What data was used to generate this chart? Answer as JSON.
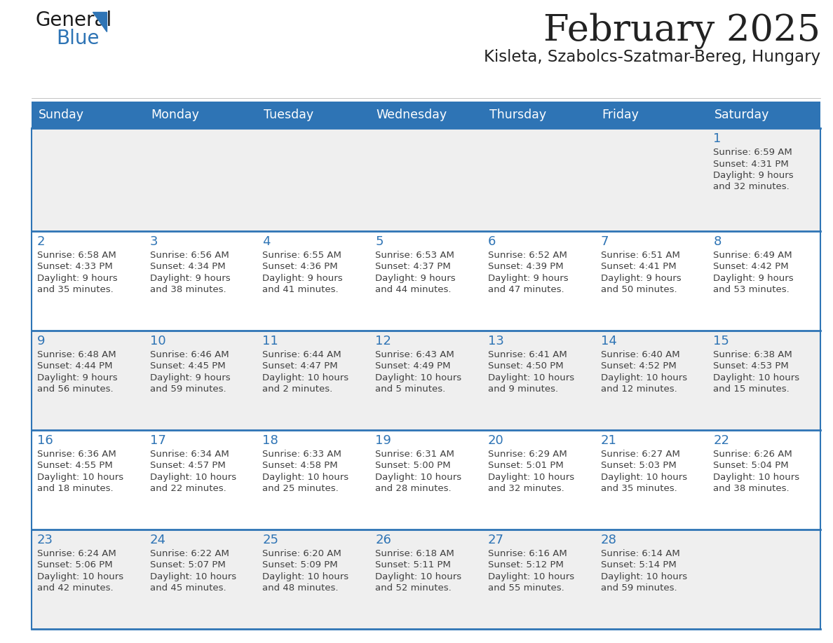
{
  "title": "February 2025",
  "subtitle": "Kisleta, Szabolcs-Szatmar-Bereg, Hungary",
  "days_of_week": [
    "Sunday",
    "Monday",
    "Tuesday",
    "Wednesday",
    "Thursday",
    "Friday",
    "Saturday"
  ],
  "header_bg": "#2E74B5",
  "header_text": "#FFFFFF",
  "row_bg_even": "#EFEFEF",
  "row_bg_odd": "#FFFFFF",
  "separator_color": "#2E74B5",
  "day_number_color": "#2E74B5",
  "text_color": "#404040",
  "calendar": [
    [
      null,
      null,
      null,
      null,
      null,
      null,
      {
        "day": 1,
        "sunrise": "6:59 AM",
        "sunset": "4:31 PM",
        "daylight": "9 hours and 32 minutes."
      }
    ],
    [
      {
        "day": 2,
        "sunrise": "6:58 AM",
        "sunset": "4:33 PM",
        "daylight": "9 hours and 35 minutes."
      },
      {
        "day": 3,
        "sunrise": "6:56 AM",
        "sunset": "4:34 PM",
        "daylight": "9 hours and 38 minutes."
      },
      {
        "day": 4,
        "sunrise": "6:55 AM",
        "sunset": "4:36 PM",
        "daylight": "9 hours and 41 minutes."
      },
      {
        "day": 5,
        "sunrise": "6:53 AM",
        "sunset": "4:37 PM",
        "daylight": "9 hours and 44 minutes."
      },
      {
        "day": 6,
        "sunrise": "6:52 AM",
        "sunset": "4:39 PM",
        "daylight": "9 hours and 47 minutes."
      },
      {
        "day": 7,
        "sunrise": "6:51 AM",
        "sunset": "4:41 PM",
        "daylight": "9 hours and 50 minutes."
      },
      {
        "day": 8,
        "sunrise": "6:49 AM",
        "sunset": "4:42 PM",
        "daylight": "9 hours and 53 minutes."
      }
    ],
    [
      {
        "day": 9,
        "sunrise": "6:48 AM",
        "sunset": "4:44 PM",
        "daylight": "9 hours and 56 minutes."
      },
      {
        "day": 10,
        "sunrise": "6:46 AM",
        "sunset": "4:45 PM",
        "daylight": "9 hours and 59 minutes."
      },
      {
        "day": 11,
        "sunrise": "6:44 AM",
        "sunset": "4:47 PM",
        "daylight": "10 hours and 2 minutes."
      },
      {
        "day": 12,
        "sunrise": "6:43 AM",
        "sunset": "4:49 PM",
        "daylight": "10 hours and 5 minutes."
      },
      {
        "day": 13,
        "sunrise": "6:41 AM",
        "sunset": "4:50 PM",
        "daylight": "10 hours and 9 minutes."
      },
      {
        "day": 14,
        "sunrise": "6:40 AM",
        "sunset": "4:52 PM",
        "daylight": "10 hours and 12 minutes."
      },
      {
        "day": 15,
        "sunrise": "6:38 AM",
        "sunset": "4:53 PM",
        "daylight": "10 hours and 15 minutes."
      }
    ],
    [
      {
        "day": 16,
        "sunrise": "6:36 AM",
        "sunset": "4:55 PM",
        "daylight": "10 hours and 18 minutes."
      },
      {
        "day": 17,
        "sunrise": "6:34 AM",
        "sunset": "4:57 PM",
        "daylight": "10 hours and 22 minutes."
      },
      {
        "day": 18,
        "sunrise": "6:33 AM",
        "sunset": "4:58 PM",
        "daylight": "10 hours and 25 minutes."
      },
      {
        "day": 19,
        "sunrise": "6:31 AM",
        "sunset": "5:00 PM",
        "daylight": "10 hours and 28 minutes."
      },
      {
        "day": 20,
        "sunrise": "6:29 AM",
        "sunset": "5:01 PM",
        "daylight": "10 hours and 32 minutes."
      },
      {
        "day": 21,
        "sunrise": "6:27 AM",
        "sunset": "5:03 PM",
        "daylight": "10 hours and 35 minutes."
      },
      {
        "day": 22,
        "sunrise": "6:26 AM",
        "sunset": "5:04 PM",
        "daylight": "10 hours and 38 minutes."
      }
    ],
    [
      {
        "day": 23,
        "sunrise": "6:24 AM",
        "sunset": "5:06 PM",
        "daylight": "10 hours and 42 minutes."
      },
      {
        "day": 24,
        "sunrise": "6:22 AM",
        "sunset": "5:07 PM",
        "daylight": "10 hours and 45 minutes."
      },
      {
        "day": 25,
        "sunrise": "6:20 AM",
        "sunset": "5:09 PM",
        "daylight": "10 hours and 48 minutes."
      },
      {
        "day": 26,
        "sunrise": "6:18 AM",
        "sunset": "5:11 PM",
        "daylight": "10 hours and 52 minutes."
      },
      {
        "day": 27,
        "sunrise": "6:16 AM",
        "sunset": "5:12 PM",
        "daylight": "10 hours and 55 minutes."
      },
      {
        "day": 28,
        "sunrise": "6:14 AM",
        "sunset": "5:14 PM",
        "daylight": "10 hours and 59 minutes."
      },
      null
    ]
  ],
  "logo_text1": "General",
  "logo_text2": "Blue",
  "logo_text1_color": "#1a1a1a",
  "logo_text2_color": "#2E74B5",
  "logo_triangle_color": "#2E74B5",
  "fig_width": 11.88,
  "fig_height": 9.18,
  "dpi": 100
}
